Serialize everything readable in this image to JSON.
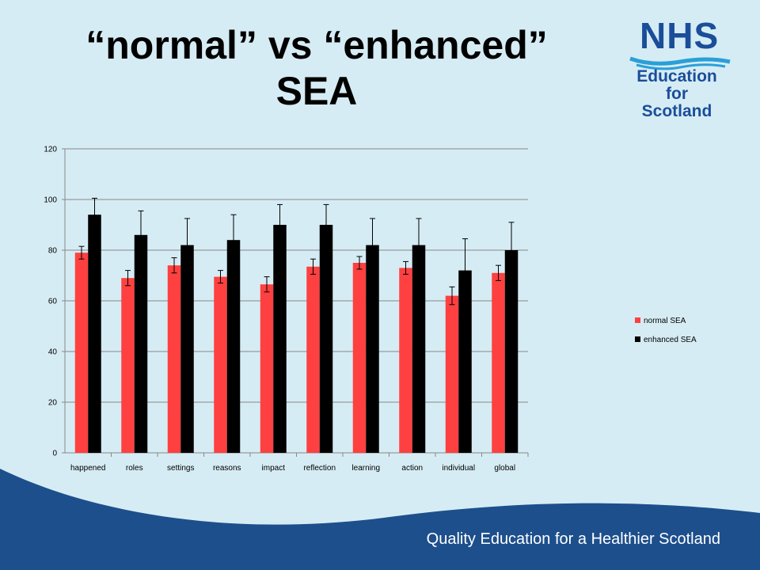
{
  "title": {
    "line1": "“normal” vs “enhanced”",
    "line2": "SEA"
  },
  "logo": {
    "brand": "NHS",
    "line1": "Education",
    "line2": "for",
    "line3": "Scotland",
    "color": "#1a4e9a"
  },
  "footer": {
    "tagline": "Quality Education for a Healthier Scotland",
    "wave_color": "#1d4f8c"
  },
  "chart_data": {
    "type": "bar",
    "title": "",
    "xlabel": "",
    "ylabel": "",
    "ylim": [
      0,
      120
    ],
    "yticks": [
      0,
      20,
      40,
      60,
      80,
      100,
      120
    ],
    "grid": true,
    "legend_position": "right",
    "categories": [
      "happened",
      "roles",
      "settings",
      "reasons",
      "impact",
      "reflection",
      "learning",
      "action",
      "individual",
      "global"
    ],
    "series": [
      {
        "name": "normal SEA",
        "color": "#ff4040",
        "values": [
          79,
          69,
          74,
          69.5,
          66.5,
          73.5,
          75,
          73,
          62,
          71
        ],
        "error": [
          2.5,
          3,
          3,
          2.5,
          3,
          3,
          2.5,
          2.5,
          3.5,
          3
        ]
      },
      {
        "name": "enhanced SEA",
        "color": "#000000",
        "values": [
          94,
          86,
          82,
          84,
          90,
          90,
          82,
          82,
          72,
          80
        ],
        "error": [
          6.5,
          9.5,
          10.5,
          10,
          8,
          8,
          10.5,
          10.5,
          12.5,
          11
        ]
      }
    ]
  }
}
